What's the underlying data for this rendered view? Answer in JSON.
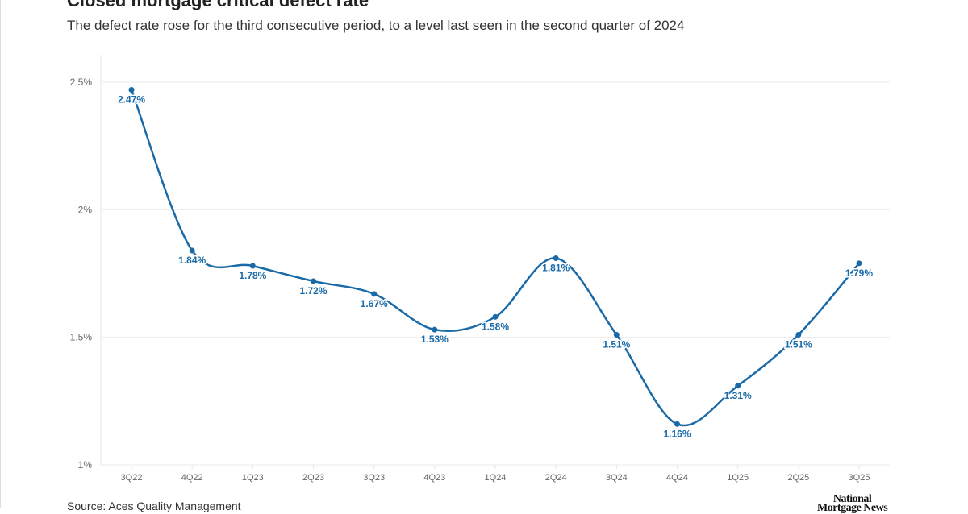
{
  "title": "Closed mortgage critical defect rate",
  "subtitle": "The defect rate rose for the third consecutive period, to a level last seen in the second quarter of 2024",
  "source": "Source: Aces Quality Management",
  "logo": "National Mortgage News",
  "chart_data": {
    "type": "line",
    "categories": [
      "3Q22",
      "4Q22",
      "1Q23",
      "2Q23",
      "3Q23",
      "4Q23",
      "1Q24",
      "2Q24",
      "3Q24",
      "4Q24",
      "1Q25",
      "2Q25",
      "3Q25"
    ],
    "values": [
      2.47,
      1.84,
      1.78,
      1.72,
      1.67,
      1.53,
      1.58,
      1.81,
      1.51,
      1.16,
      1.31,
      1.51,
      1.79
    ],
    "data_labels": [
      "2.47%",
      "1.84%",
      "1.78%",
      "1.72%",
      "1.67%",
      "1.53%",
      "1.58%",
      "1.81%",
      "1.51%",
      "1.16%",
      "1.31%",
      "1.51%",
      "1.79%"
    ],
    "yticks": [
      1,
      1.5,
      2,
      2.5
    ],
    "ytick_labels": [
      "1%",
      "1.5%",
      "2%",
      "2.5%"
    ],
    "ylim": [
      1,
      2.5
    ],
    "grid": true,
    "color": "#1a6aa8",
    "xlabel": "",
    "ylabel": ""
  }
}
